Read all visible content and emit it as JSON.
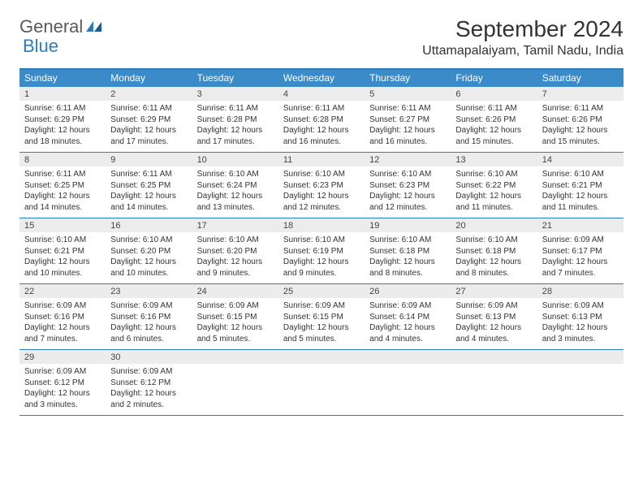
{
  "logo": {
    "part1": "General",
    "part2": "Blue"
  },
  "title": "September 2024",
  "location": "Uttamapalaiyam, Tamil Nadu, India",
  "colors": {
    "header_bg": "#3b8bc9",
    "border": "#2b7bbf",
    "daynum_bg": "#ececec",
    "text": "#333333",
    "logo_gray": "#5a5a5a",
    "logo_blue": "#2b7bbf",
    "background": "#ffffff"
  },
  "day_headers": [
    "Sunday",
    "Monday",
    "Tuesday",
    "Wednesday",
    "Thursday",
    "Friday",
    "Saturday"
  ],
  "weeks": [
    [
      {
        "n": "1",
        "sr": "6:11 AM",
        "ss": "6:29 PM",
        "dl": "12 hours and 18 minutes."
      },
      {
        "n": "2",
        "sr": "6:11 AM",
        "ss": "6:29 PM",
        "dl": "12 hours and 17 minutes."
      },
      {
        "n": "3",
        "sr": "6:11 AM",
        "ss": "6:28 PM",
        "dl": "12 hours and 17 minutes."
      },
      {
        "n": "4",
        "sr": "6:11 AM",
        "ss": "6:28 PM",
        "dl": "12 hours and 16 minutes."
      },
      {
        "n": "5",
        "sr": "6:11 AM",
        "ss": "6:27 PM",
        "dl": "12 hours and 16 minutes."
      },
      {
        "n": "6",
        "sr": "6:11 AM",
        "ss": "6:26 PM",
        "dl": "12 hours and 15 minutes."
      },
      {
        "n": "7",
        "sr": "6:11 AM",
        "ss": "6:26 PM",
        "dl": "12 hours and 15 minutes."
      }
    ],
    [
      {
        "n": "8",
        "sr": "6:11 AM",
        "ss": "6:25 PM",
        "dl": "12 hours and 14 minutes."
      },
      {
        "n": "9",
        "sr": "6:11 AM",
        "ss": "6:25 PM",
        "dl": "12 hours and 14 minutes."
      },
      {
        "n": "10",
        "sr": "6:10 AM",
        "ss": "6:24 PM",
        "dl": "12 hours and 13 minutes."
      },
      {
        "n": "11",
        "sr": "6:10 AM",
        "ss": "6:23 PM",
        "dl": "12 hours and 12 minutes."
      },
      {
        "n": "12",
        "sr": "6:10 AM",
        "ss": "6:23 PM",
        "dl": "12 hours and 12 minutes."
      },
      {
        "n": "13",
        "sr": "6:10 AM",
        "ss": "6:22 PM",
        "dl": "12 hours and 11 minutes."
      },
      {
        "n": "14",
        "sr": "6:10 AM",
        "ss": "6:21 PM",
        "dl": "12 hours and 11 minutes."
      }
    ],
    [
      {
        "n": "15",
        "sr": "6:10 AM",
        "ss": "6:21 PM",
        "dl": "12 hours and 10 minutes."
      },
      {
        "n": "16",
        "sr": "6:10 AM",
        "ss": "6:20 PM",
        "dl": "12 hours and 10 minutes."
      },
      {
        "n": "17",
        "sr": "6:10 AM",
        "ss": "6:20 PM",
        "dl": "12 hours and 9 minutes."
      },
      {
        "n": "18",
        "sr": "6:10 AM",
        "ss": "6:19 PM",
        "dl": "12 hours and 9 minutes."
      },
      {
        "n": "19",
        "sr": "6:10 AM",
        "ss": "6:18 PM",
        "dl": "12 hours and 8 minutes."
      },
      {
        "n": "20",
        "sr": "6:10 AM",
        "ss": "6:18 PM",
        "dl": "12 hours and 8 minutes."
      },
      {
        "n": "21",
        "sr": "6:09 AM",
        "ss": "6:17 PM",
        "dl": "12 hours and 7 minutes."
      }
    ],
    [
      {
        "n": "22",
        "sr": "6:09 AM",
        "ss": "6:16 PM",
        "dl": "12 hours and 7 minutes."
      },
      {
        "n": "23",
        "sr": "6:09 AM",
        "ss": "6:16 PM",
        "dl": "12 hours and 6 minutes."
      },
      {
        "n": "24",
        "sr": "6:09 AM",
        "ss": "6:15 PM",
        "dl": "12 hours and 5 minutes."
      },
      {
        "n": "25",
        "sr": "6:09 AM",
        "ss": "6:15 PM",
        "dl": "12 hours and 5 minutes."
      },
      {
        "n": "26",
        "sr": "6:09 AM",
        "ss": "6:14 PM",
        "dl": "12 hours and 4 minutes."
      },
      {
        "n": "27",
        "sr": "6:09 AM",
        "ss": "6:13 PM",
        "dl": "12 hours and 4 minutes."
      },
      {
        "n": "28",
        "sr": "6:09 AM",
        "ss": "6:13 PM",
        "dl": "12 hours and 3 minutes."
      }
    ],
    [
      {
        "n": "29",
        "sr": "6:09 AM",
        "ss": "6:12 PM",
        "dl": "12 hours and 3 minutes."
      },
      {
        "n": "30",
        "sr": "6:09 AM",
        "ss": "6:12 PM",
        "dl": "12 hours and 2 minutes."
      },
      {
        "empty": true
      },
      {
        "empty": true
      },
      {
        "empty": true
      },
      {
        "empty": true
      },
      {
        "empty": true
      }
    ]
  ],
  "labels": {
    "sunrise": "Sunrise:",
    "sunset": "Sunset:",
    "daylight": "Daylight:"
  }
}
